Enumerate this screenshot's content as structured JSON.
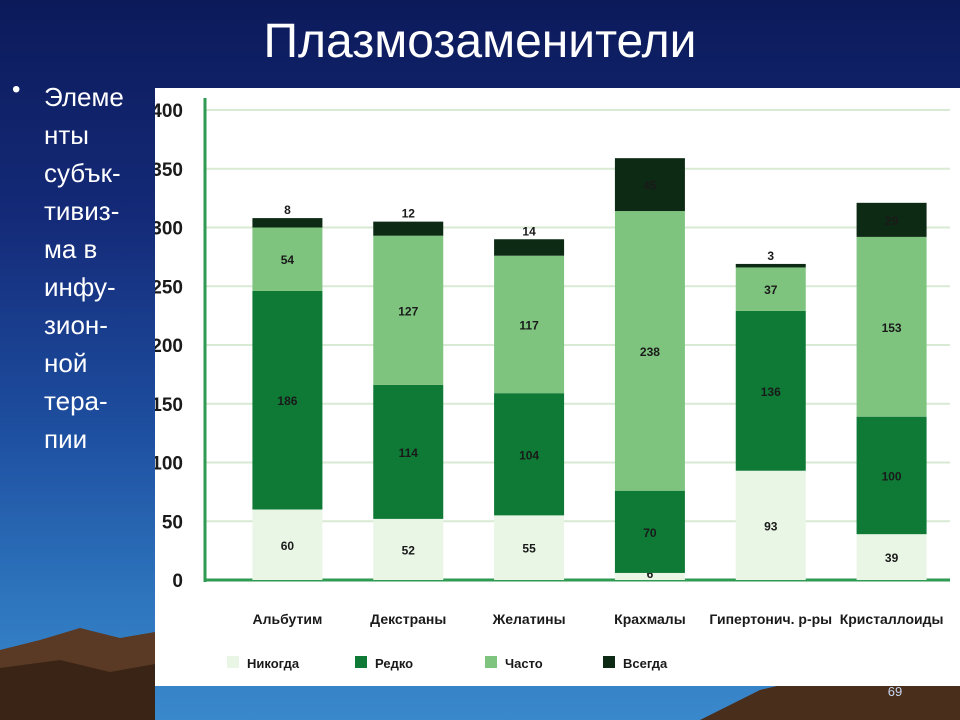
{
  "slide": {
    "title": "Плазмозаменители",
    "bullet": "•",
    "side_text": "Элеме\nнты\nсубък-\nтивиз-\nма в\nинфу-\nзион-\nной\nтера-\nпии",
    "page_number": "69"
  },
  "colors": {
    "Никогда": "#e9f6e6",
    "Редко": "#0e7a36",
    "Часто": "#7ec47f",
    "Всегда": "#0d2a14",
    "grid": "#d9ead4",
    "axis": "#2e9a52"
  },
  "chart_data": {
    "type": "bar",
    "stacked": true,
    "categories": [
      "Альбутим",
      "Декстраны",
      "Желатины",
      "Крахмалы",
      "Гипертонич. р-ры",
      "Кристаллоиды"
    ],
    "series": [
      {
        "name": "Никогда",
        "values": [
          60,
          52,
          55,
          6,
          93,
          39
        ]
      },
      {
        "name": "Редко",
        "values": [
          186,
          114,
          104,
          70,
          136,
          100
        ]
      },
      {
        "name": "Часто",
        "values": [
          54,
          127,
          117,
          238,
          37,
          153
        ]
      },
      {
        "name": "Всегда",
        "values": [
          8,
          12,
          14,
          45,
          3,
          29
        ]
      }
    ],
    "ylim": [
      0,
      400
    ],
    "yticks": [
      0,
      50,
      100,
      150,
      200,
      250,
      300,
      350,
      400
    ],
    "grid": true,
    "legend_position": "bottom"
  }
}
